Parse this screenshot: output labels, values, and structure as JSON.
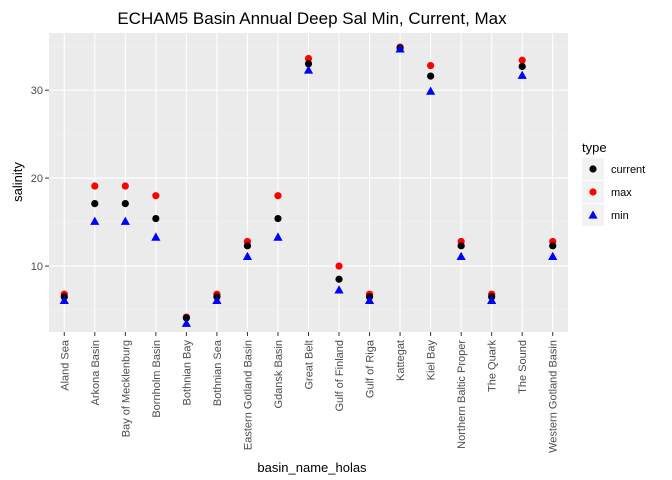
{
  "chart_data": {
    "type": "scatter",
    "title": "ECHAM5 Basin Annual Deep Sal Min, Current, Max",
    "xlabel": "basin_name_holas",
    "ylabel": "salinity",
    "categories": [
      "Aland Sea",
      "Arkona Basin",
      "Bay of Mecklenburg",
      "Bornholm Basin",
      "Bothnian Bay",
      "Bothnian Sea",
      "Eastern Gotland Basin",
      "Gdansk Basin",
      "Great Belt",
      "Gulf of Finland",
      "Gulf of Riga",
      "Kattegat",
      "Kiel Bay",
      "Northern Baltic Proper",
      "The Quark",
      "The Sound",
      "Western Gotland Basin"
    ],
    "ylim": [
      2.5,
      36.5
    ],
    "yticks": [
      10,
      20,
      30
    ],
    "grid": true,
    "legend_title": "type",
    "legend_position": "right",
    "series": [
      {
        "name": "current",
        "color": "#000000",
        "marker": "circle",
        "values": [
          6.5,
          17.1,
          17.1,
          15.4,
          4.1,
          6.5,
          12.3,
          15.4,
          33.0,
          8.5,
          6.5,
          34.8,
          31.6,
          12.3,
          6.5,
          32.7,
          12.3
        ]
      },
      {
        "name": "max",
        "color": "#ff0000",
        "marker": "circle",
        "values": [
          6.8,
          19.1,
          19.1,
          18.0,
          4.2,
          6.8,
          12.8,
          18.0,
          33.6,
          10.0,
          6.8,
          34.9,
          32.8,
          12.8,
          6.8,
          33.4,
          12.8
        ]
      },
      {
        "name": "min",
        "color": "#0000ff",
        "marker": "triangle",
        "values": [
          6.1,
          15.1,
          15.1,
          13.3,
          3.5,
          6.1,
          11.1,
          13.3,
          32.3,
          7.3,
          6.1,
          34.7,
          29.9,
          11.1,
          6.1,
          31.7,
          11.1
        ]
      }
    ]
  }
}
